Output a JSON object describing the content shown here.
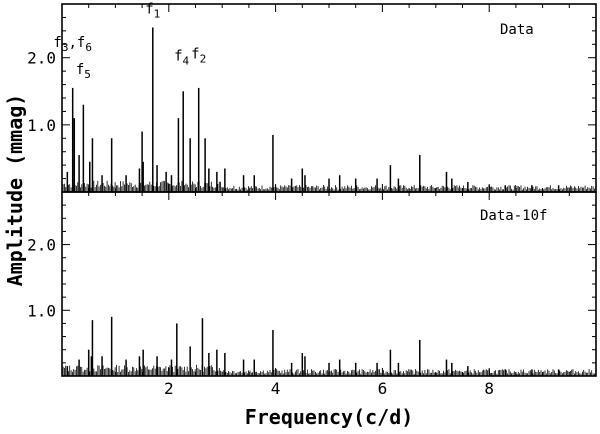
{
  "chart_data": [
    {
      "type": "line",
      "title": "",
      "panel_label": "Data",
      "xlabel": "Frequency(c/d)",
      "ylabel": "Amplitude (mmag)",
      "xlim": [
        0,
        10
      ],
      "ylim": [
        0,
        2.8
      ],
      "x_ticks": [
        2,
        4,
        6,
        8
      ],
      "y_ticks": [
        1.0,
        2.0
      ],
      "peaks": [
        {
          "x": 0.1,
          "y": 0.3
        },
        {
          "x": 0.2,
          "y": 1.55
        },
        {
          "x": 0.23,
          "y": 1.1
        },
        {
          "x": 0.32,
          "y": 0.55
        },
        {
          "x": 0.4,
          "y": 1.3
        },
        {
          "x": 0.52,
          "y": 0.45
        },
        {
          "x": 0.57,
          "y": 0.8
        },
        {
          "x": 0.75,
          "y": 0.25
        },
        {
          "x": 0.93,
          "y": 0.8
        },
        {
          "x": 1.2,
          "y": 0.25
        },
        {
          "x": 1.45,
          "y": 0.35
        },
        {
          "x": 1.5,
          "y": 0.9
        },
        {
          "x": 1.52,
          "y": 0.45
        },
        {
          "x": 1.7,
          "y": 2.45
        },
        {
          "x": 1.78,
          "y": 0.4
        },
        {
          "x": 1.95,
          "y": 0.3
        },
        {
          "x": 2.05,
          "y": 0.25
        },
        {
          "x": 2.18,
          "y": 1.1
        },
        {
          "x": 2.27,
          "y": 1.5
        },
        {
          "x": 2.4,
          "y": 0.8
        },
        {
          "x": 2.56,
          "y": 1.55
        },
        {
          "x": 2.68,
          "y": 0.8
        },
        {
          "x": 2.75,
          "y": 0.35
        },
        {
          "x": 2.9,
          "y": 0.3
        },
        {
          "x": 3.05,
          "y": 0.35
        },
        {
          "x": 3.4,
          "y": 0.25
        },
        {
          "x": 3.6,
          "y": 0.25
        },
        {
          "x": 3.95,
          "y": 0.85
        },
        {
          "x": 4.3,
          "y": 0.2
        },
        {
          "x": 4.5,
          "y": 0.35
        },
        {
          "x": 4.55,
          "y": 0.25
        },
        {
          "x": 5.0,
          "y": 0.2
        },
        {
          "x": 5.2,
          "y": 0.25
        },
        {
          "x": 5.5,
          "y": 0.2
        },
        {
          "x": 5.9,
          "y": 0.2
        },
        {
          "x": 6.15,
          "y": 0.4
        },
        {
          "x": 6.3,
          "y": 0.2
        },
        {
          "x": 6.7,
          "y": 0.55
        },
        {
          "x": 7.2,
          "y": 0.3
        },
        {
          "x": 7.3,
          "y": 0.2
        },
        {
          "x": 7.6,
          "y": 0.15
        },
        {
          "x": 8.0,
          "y": 0.1
        },
        {
          "x": 8.3,
          "y": 0.1
        },
        {
          "x": 8.8,
          "y": 0.1
        },
        {
          "x": 9.3,
          "y": 0.1
        }
      ],
      "annotations": [
        {
          "text": "f",
          "sub": "1",
          "x": 1.7,
          "y": 2.45
        },
        {
          "text": "f",
          "sub": "3",
          "sep": ",",
          "text2": "f",
          "sub2": "6",
          "x": 0.2,
          "y": 1.95
        },
        {
          "text": "f",
          "sub": "5",
          "x": 0.4,
          "y": 1.55
        },
        {
          "text": "f",
          "sub": "4",
          "x": 2.24,
          "y": 1.75
        },
        {
          "text": "f",
          "sub": "2",
          "x": 2.56,
          "y": 1.78
        }
      ]
    },
    {
      "type": "line",
      "title": "",
      "panel_label": "Data-10f",
      "xlabel": "Frequency(c/d)",
      "ylabel": "Amplitude (mmag)",
      "xlim": [
        0,
        10
      ],
      "ylim": [
        0,
        2.8
      ],
      "x_ticks": [
        2,
        4,
        6,
        8
      ],
      "y_ticks": [
        1.0,
        2.0
      ],
      "peaks": [
        {
          "x": 0.1,
          "y": 0.15
        },
        {
          "x": 0.32,
          "y": 0.25
        },
        {
          "x": 0.5,
          "y": 0.4
        },
        {
          "x": 0.55,
          "y": 0.3
        },
        {
          "x": 0.57,
          "y": 0.85
        },
        {
          "x": 0.75,
          "y": 0.3
        },
        {
          "x": 0.93,
          "y": 0.9
        },
        {
          "x": 1.2,
          "y": 0.25
        },
        {
          "x": 1.45,
          "y": 0.3
        },
        {
          "x": 1.52,
          "y": 0.4
        },
        {
          "x": 1.78,
          "y": 0.3
        },
        {
          "x": 2.05,
          "y": 0.25
        },
        {
          "x": 2.15,
          "y": 0.8
        },
        {
          "x": 2.4,
          "y": 0.45
        },
        {
          "x": 2.63,
          "y": 0.88
        },
        {
          "x": 2.75,
          "y": 0.35
        },
        {
          "x": 2.9,
          "y": 0.4
        },
        {
          "x": 3.05,
          "y": 0.35
        },
        {
          "x": 3.4,
          "y": 0.25
        },
        {
          "x": 3.6,
          "y": 0.25
        },
        {
          "x": 3.95,
          "y": 0.7
        },
        {
          "x": 4.3,
          "y": 0.2
        },
        {
          "x": 4.5,
          "y": 0.35
        },
        {
          "x": 4.55,
          "y": 0.3
        },
        {
          "x": 5.0,
          "y": 0.2
        },
        {
          "x": 5.2,
          "y": 0.25
        },
        {
          "x": 5.5,
          "y": 0.2
        },
        {
          "x": 5.9,
          "y": 0.2
        },
        {
          "x": 6.15,
          "y": 0.4
        },
        {
          "x": 6.3,
          "y": 0.2
        },
        {
          "x": 6.7,
          "y": 0.55
        },
        {
          "x": 7.2,
          "y": 0.25
        },
        {
          "x": 7.3,
          "y": 0.2
        },
        {
          "x": 7.6,
          "y": 0.15
        },
        {
          "x": 8.0,
          "y": 0.1
        },
        {
          "x": 8.3,
          "y": 0.1
        },
        {
          "x": 8.8,
          "y": 0.1
        },
        {
          "x": 9.3,
          "y": 0.1
        }
      ],
      "annotations": []
    }
  ]
}
